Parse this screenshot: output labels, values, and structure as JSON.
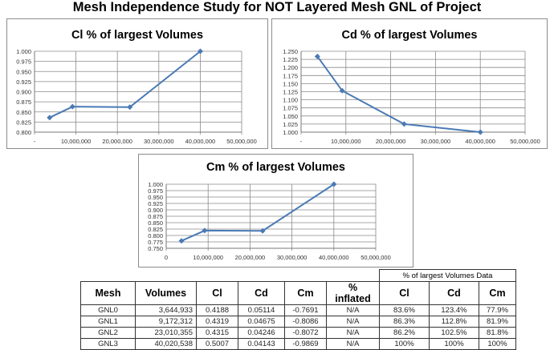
{
  "title": "Mesh Independence Study for NOT Layered Mesh GNL of Project",
  "chart_data": [
    {
      "type": "line",
      "title": "Cl % of largest Volumes",
      "x": [
        3644933,
        9172312,
        23010355,
        40020538
      ],
      "y": [
        0.836,
        0.863,
        0.862,
        1.0
      ],
      "xlim": [
        0,
        50000000
      ],
      "ylim": [
        0.8,
        1.0
      ],
      "ystep": 0.025,
      "xticks": [
        "-",
        "10,000,000",
        "20,000,000",
        "30,000,000",
        "40,000,000",
        "50,000,000"
      ],
      "yticks": [
        "0.800",
        "0.825",
        "0.850",
        "0.875",
        "0.900",
        "0.925",
        "0.950",
        "0.975",
        "1.000"
      ],
      "grid": true,
      "color": "#4a7ab5"
    },
    {
      "type": "line",
      "title": "Cd % of largest Volumes",
      "x": [
        3644933,
        9172312,
        23010355,
        40020538
      ],
      "y": [
        1.234,
        1.128,
        1.025,
        1.0
      ],
      "xlim": [
        0,
        50000000
      ],
      "ylim": [
        1.0,
        1.25
      ],
      "ystep": 0.025,
      "xticks": [
        "-",
        "10,000,000",
        "20,000,000",
        "30,000,000",
        "40,000,000",
        "50,000,000"
      ],
      "yticks": [
        "1.000",
        "1.025",
        "1.050",
        "1.075",
        "1.100",
        "1.125",
        "1.150",
        "1.175",
        "1.200",
        "1.225",
        "1.250"
      ],
      "grid": true,
      "color": "#4a7ab5"
    },
    {
      "type": "line",
      "title": "Cm % of largest Volumes",
      "x": [
        3644933,
        9172312,
        23010355,
        40020538
      ],
      "y": [
        0.779,
        0.819,
        0.818,
        1.0
      ],
      "xlim": [
        0,
        50000000
      ],
      "ylim": [
        0.75,
        1.0
      ],
      "ystep": 0.025,
      "xticks": [
        "0",
        "10,000,000",
        "20,000,000",
        "30,000,000",
        "40,000,000",
        "50,000,000"
      ],
      "yticks": [
        "0.750",
        "0.775",
        "0.800",
        "0.825",
        "0.850",
        "0.875",
        "0.900",
        "0.925",
        "0.950",
        "0.975",
        "1.000"
      ],
      "grid": true,
      "color": "#4a7ab5"
    }
  ],
  "table": {
    "group_header": "% of largest Volumes Data",
    "headers": [
      "Mesh",
      "Volumes",
      "Cl",
      "Cd",
      "Cm",
      "% inflated",
      "Cl",
      "Cd",
      "Cm"
    ],
    "rows": [
      [
        "GNL0",
        "3,644,933",
        "0.4188",
        "0.05114",
        "-0.7691",
        "N/A",
        "83.6%",
        "123.4%",
        "77.9%"
      ],
      [
        "GNL1",
        "9,172,312",
        "0.4319",
        "0.04675",
        "-0.8086",
        "N/A",
        "86.3%",
        "112.8%",
        "81.9%"
      ],
      [
        "GNL2",
        "23,010,355",
        "0.4315",
        "0.04246",
        "-0.8072",
        "N/A",
        "86.2%",
        "102.5%",
        "81.8%"
      ],
      [
        "GNL3",
        "40,020,538",
        "0.5007",
        "0.04143",
        "-0.9869",
        "N/A",
        "100%",
        "100%",
        "100%"
      ]
    ]
  }
}
